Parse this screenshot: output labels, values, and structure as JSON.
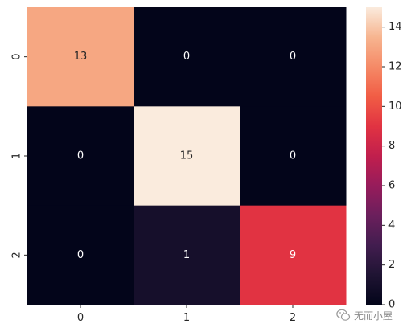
{
  "chart_data": {
    "type": "heatmap",
    "title": "",
    "xlabel": "",
    "ylabel": "",
    "x_categories": [
      "0",
      "1",
      "2"
    ],
    "y_categories": [
      "0",
      "1",
      "2"
    ],
    "values": [
      [
        13,
        0,
        0
      ],
      [
        0,
        15,
        0
      ],
      [
        0,
        1,
        9
      ]
    ],
    "annotations": true,
    "colormap": "rocket",
    "color_range": [
      0,
      15
    ],
    "colorbar_ticks": [
      0,
      2,
      4,
      6,
      8,
      10,
      12,
      14
    ],
    "legend": "colorbar-right"
  },
  "watermark": {
    "icon": "wechat-icon",
    "text": "无而小屋"
  }
}
